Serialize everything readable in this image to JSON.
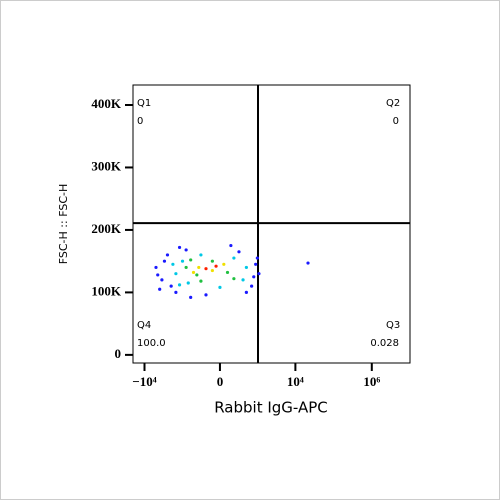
{
  "chart_data": {
    "type": "scatter",
    "x_label": "Rabbit IgG-APC",
    "y_label": "FSC-H :: FSC-H",
    "xscale": "asinh",
    "xlim": [
      -20000,
      10000000
    ],
    "xticks": [
      {
        "value": -10000,
        "label": "−10⁴"
      },
      0,
      {
        "value": 10000,
        "label": "10⁴"
      },
      {
        "value": 1000000,
        "label": "10⁶"
      }
    ],
    "ylim": [
      -13000,
      432000
    ],
    "yticks": [
      0,
      {
        "value": 100000,
        "label": "100K"
      },
      {
        "value": 200000,
        "label": "200K"
      },
      {
        "value": 300000,
        "label": "300K"
      },
      {
        "value": 400000,
        "label": "400K"
      }
    ],
    "gate": {
      "x": 1040,
      "y": 211000
    },
    "quadrants": [
      {
        "name": "Q1",
        "value": 0,
        "value_label": "0"
      },
      {
        "name": "Q2",
        "value": 0,
        "value_label": "0"
      },
      {
        "name": "Q3",
        "value": 0.028,
        "value_label": "0.028"
      },
      {
        "name": "Q4",
        "value": 100,
        "value_label": "100.0"
      }
    ],
    "layers": [
      {
        "color": "#1a1aff",
        "x": [
          -5000,
          -3500,
          -2500,
          -4000,
          -1500,
          -800,
          -200,
          300,
          700,
          900,
          1100,
          -3000,
          -2000,
          500,
          -1200,
          150,
          800,
          -4500,
          -600,
          1000,
          21400
        ],
        "y": [
          140000,
          120000,
          160000,
          105000,
          100000,
          168000,
          96000,
          165000,
          110000,
          145000,
          130000,
          150000,
          110000,
          100000,
          172000,
          175000,
          125000,
          128000,
          92000,
          155000,
          147000
        ]
      },
      {
        "color": "#00c8e6",
        "x": [
          -1500,
          -1000,
          -700,
          -300,
          200,
          400,
          -1800,
          0,
          500,
          -1200
        ],
        "y": [
          130000,
          150000,
          115000,
          160000,
          155000,
          120000,
          145000,
          108000,
          140000,
          112000
        ]
      },
      {
        "color": "#20c040",
        "x": [
          -800,
          -400,
          -100,
          100,
          -600,
          200,
          -300
        ],
        "y": [
          140000,
          128000,
          150000,
          132000,
          152000,
          122000,
          118000
        ]
      },
      {
        "color": "#f0e000",
        "x": [
          -350,
          -100,
          50,
          -500
        ],
        "y": [
          140000,
          135000,
          145000,
          132000
        ]
      },
      {
        "color": "#ff2000",
        "x": [
          -200,
          -50
        ],
        "y": [
          138000,
          142000
        ]
      }
    ]
  }
}
